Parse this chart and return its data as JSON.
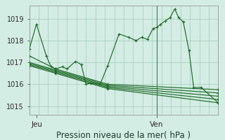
{
  "background_color": "#d4ede4",
  "plot_bg_color": "#d4ede4",
  "grid_color": "#aacfbf",
  "line_color": "#1f6b2a",
  "ylim": [
    1014.6,
    1019.6
  ],
  "xlim": [
    0,
    1
  ],
  "yticks": [
    1015,
    1016,
    1017,
    1018,
    1019
  ],
  "xlabel": "Pression niveau de la mer( hPa )",
  "xlabel_fontsize": 8.5,
  "xtick_positions": [
    0.04,
    0.675
  ],
  "xtick_labels": [
    "Jeu",
    "Ven"
  ],
  "vline_x": 0.675,
  "series": [
    {
      "x": [
        0.0,
        0.038,
        0.09,
        0.115,
        0.14,
        0.175,
        0.2,
        0.245,
        0.275,
        0.3,
        0.325,
        0.375,
        0.415,
        0.475,
        0.525,
        0.565,
        0.595,
        0.625,
        0.655,
        0.675,
        0.695,
        0.72,
        0.745,
        0.77,
        0.79,
        0.815,
        0.845,
        0.87,
        0.91,
        1.0
      ],
      "y": [
        1017.6,
        1018.75,
        1017.3,
        1016.8,
        1016.7,
        1016.8,
        1016.7,
        1017.05,
        1016.9,
        1016.0,
        1016.05,
        1016.0,
        1016.85,
        1018.3,
        1018.15,
        1018.0,
        1018.15,
        1018.05,
        1018.55,
        1018.6,
        1018.75,
        1018.9,
        1019.05,
        1019.45,
        1019.05,
        1018.85,
        1017.55,
        1015.85,
        1015.85,
        1015.15
      ]
    },
    {
      "x": [
        0.0,
        0.14,
        0.415,
        1.0
      ],
      "y": [
        1017.3,
        1016.7,
        1016.0,
        1015.75
      ]
    },
    {
      "x": [
        0.0,
        0.14,
        0.415,
        1.0
      ],
      "y": [
        1017.0,
        1016.65,
        1015.95,
        1015.6
      ]
    },
    {
      "x": [
        0.0,
        0.14,
        0.415,
        1.0
      ],
      "y": [
        1016.95,
        1016.6,
        1015.9,
        1015.45
      ]
    },
    {
      "x": [
        0.0,
        0.14,
        0.415,
        1.0
      ],
      "y": [
        1016.9,
        1016.55,
        1015.85,
        1015.3
      ]
    },
    {
      "x": [
        0.0,
        0.14,
        0.415,
        1.0
      ],
      "y": [
        1016.85,
        1016.5,
        1015.8,
        1015.15
      ]
    }
  ]
}
